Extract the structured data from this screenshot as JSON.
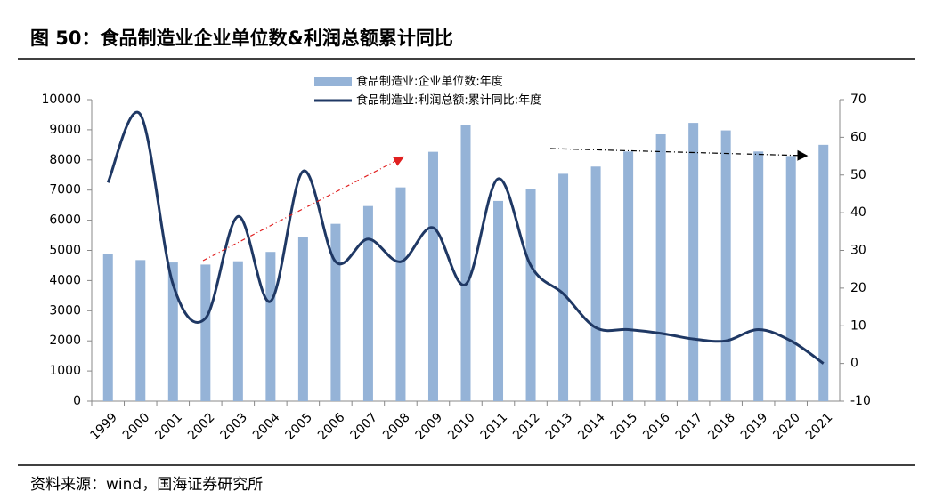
{
  "chart_data": {
    "type": "combo",
    "title": "图 50：食品制造业企业单位数&利润总额累计同比",
    "source": "资料来源：wind，国海证券研究所",
    "categories": [
      "1999",
      "2000",
      "2001",
      "2002",
      "2003",
      "2004",
      "2005",
      "2006",
      "2007",
      "2008",
      "2009",
      "2010",
      "2011",
      "2012",
      "2013",
      "2014",
      "2015",
      "2016",
      "2017",
      "2018",
      "2019",
      "2020",
      "2021"
    ],
    "series": [
      {
        "name": "食品制造业:企业单位数:年度",
        "type": "bar",
        "color": "#95b3d7",
        "values": [
          4870,
          4680,
          4600,
          4530,
          4640,
          4950,
          5430,
          5880,
          6470,
          7090,
          8270,
          9150,
          6640,
          7040,
          7540,
          7780,
          8280,
          8850,
          9230,
          8980,
          8280,
          8130,
          8500
        ]
      },
      {
        "name": "食品制造业:利润总额:累计同比:年度",
        "type": "line",
        "axis": "y2",
        "color": "#1f3864",
        "values": [
          48,
          66,
          21,
          12,
          39,
          16.5,
          51,
          27,
          33,
          27,
          36,
          21,
          49,
          26,
          18.5,
          9.5,
          9,
          8,
          6.5,
          6,
          9,
          6,
          0
        ]
      }
    ],
    "ylim": [
      0,
      10000
    ],
    "yticks": [
      0,
      1000,
      2000,
      3000,
      4000,
      5000,
      6000,
      7000,
      8000,
      9000,
      10000
    ],
    "y2lim": [
      -10,
      70
    ],
    "y2ticks": [
      -10,
      0,
      10,
      20,
      30,
      40,
      50,
      60,
      70
    ],
    "legend": "top"
  }
}
